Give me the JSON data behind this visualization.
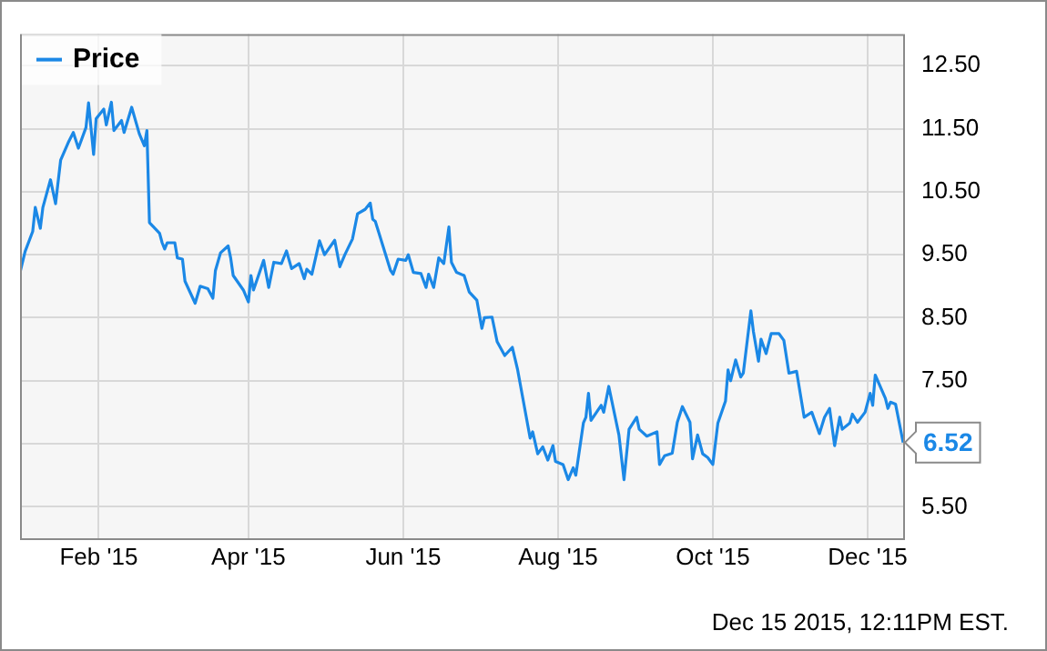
{
  "chart_data": {
    "type": "line",
    "x": [
      "2015-01-01",
      "2015-01-03",
      "2015-01-06",
      "2015-01-07",
      "2015-01-09",
      "2015-01-10",
      "2015-01-13",
      "2015-01-15",
      "2015-01-17",
      "2015-01-20",
      "2015-01-22",
      "2015-01-24",
      "2015-01-27",
      "2015-01-28",
      "2015-01-30",
      "2015-01-31",
      "2015-02-03",
      "2015-02-04",
      "2015-02-06",
      "2015-02-07",
      "2015-02-10",
      "2015-02-11",
      "2015-02-14",
      "2015-02-17",
      "2015-02-19",
      "2015-02-20",
      "2015-02-21",
      "2015-02-25",
      "2015-02-26",
      "2015-02-27",
      "2015-02-28",
      "2015-03-03",
      "2015-03-04",
      "2015-03-06",
      "2015-03-07",
      "2015-03-11",
      "2015-03-13",
      "2015-03-16",
      "2015-03-18",
      "2015-03-19",
      "2015-03-21",
      "2015-03-24",
      "2015-03-25",
      "2015-03-26",
      "2015-03-30",
      "2015-04-01",
      "2015-04-02",
      "2015-04-03",
      "2015-04-07",
      "2015-04-09",
      "2015-04-11",
      "2015-04-14",
      "2015-04-16",
      "2015-04-18",
      "2015-04-21",
      "2015-04-23",
      "2015-04-24",
      "2015-04-26",
      "2015-04-29",
      "2015-05-01",
      "2015-05-05",
      "2015-05-07",
      "2015-05-09",
      "2015-05-12",
      "2015-05-14",
      "2015-05-17",
      "2015-05-19",
      "2015-05-20",
      "2015-05-21",
      "2015-05-27",
      "2015-05-28",
      "2015-05-30",
      "2015-06-02",
      "2015-06-03",
      "2015-06-05",
      "2015-06-08",
      "2015-06-10",
      "2015-06-11",
      "2015-06-13",
      "2015-06-15",
      "2015-06-17",
      "2015-06-19",
      "2015-06-20",
      "2015-06-22",
      "2015-06-25",
      "2015-06-27",
      "2015-06-30",
      "2015-07-02",
      "2015-07-03",
      "2015-07-06",
      "2015-07-08",
      "2015-07-11",
      "2015-07-14",
      "2015-07-16",
      "2015-07-21",
      "2015-07-22",
      "2015-07-24",
      "2015-07-26",
      "2015-07-28",
      "2015-07-30",
      "2015-07-31",
      "2015-08-03",
      "2015-08-05",
      "2015-08-07",
      "2015-08-08",
      "2015-08-11",
      "2015-08-12",
      "2015-08-13",
      "2015-08-14",
      "2015-08-18",
      "2015-08-19",
      "2015-08-21",
      "2015-08-25",
      "2015-08-27",
      "2015-08-29",
      "2015-09-01",
      "2015-09-02",
      "2015-09-05",
      "2015-09-09",
      "2015-09-10",
      "2015-09-12",
      "2015-09-15",
      "2015-09-17",
      "2015-09-19",
      "2015-09-22",
      "2015-09-23",
      "2015-09-25",
      "2015-09-27",
      "2015-09-29",
      "2015-10-01",
      "2015-10-03",
      "2015-10-06",
      "2015-10-07",
      "2015-10-08",
      "2015-10-10",
      "2015-10-12",
      "2015-10-13",
      "2015-10-16",
      "2015-10-17",
      "2015-10-19",
      "2015-10-20",
      "2015-10-22",
      "2015-10-24",
      "2015-10-27",
      "2015-10-29",
      "2015-10-31",
      "2015-11-03",
      "2015-11-06",
      "2015-11-09",
      "2015-11-12",
      "2015-11-14",
      "2015-11-16",
      "2015-11-18",
      "2015-11-20",
      "2015-11-21",
      "2015-11-24",
      "2015-11-25",
      "2015-11-27",
      "2015-11-30",
      "2015-12-02",
      "2015-12-03",
      "2015-12-04",
      "2015-12-08",
      "2015-12-09",
      "2015-12-10",
      "2015-12-12",
      "2015-12-15"
    ],
    "series": [
      {
        "name": "Price",
        "color": "#1b88e6",
        "values": [
          9.22,
          9.55,
          9.87,
          10.25,
          9.92,
          10.25,
          10.69,
          10.31,
          11.0,
          11.28,
          11.44,
          11.19,
          11.52,
          11.91,
          11.09,
          11.66,
          11.81,
          11.56,
          11.92,
          11.47,
          11.63,
          11.44,
          11.84,
          11.42,
          11.23,
          11.47,
          10.01,
          9.84,
          9.69,
          9.59,
          9.69,
          9.69,
          9.45,
          9.43,
          9.08,
          8.73,
          9.0,
          8.96,
          8.81,
          9.25,
          9.53,
          9.64,
          9.45,
          9.17,
          8.94,
          8.75,
          9.17,
          8.94,
          9.41,
          8.98,
          9.38,
          9.36,
          9.56,
          9.28,
          9.36,
          9.12,
          9.27,
          9.19,
          9.72,
          9.5,
          9.73,
          9.31,
          9.5,
          9.75,
          10.15,
          10.22,
          10.32,
          10.06,
          10.03,
          9.25,
          9.19,
          9.43,
          9.41,
          9.5,
          9.22,
          9.2,
          8.98,
          9.19,
          8.98,
          9.45,
          9.36,
          9.94,
          9.38,
          9.22,
          9.17,
          8.91,
          8.78,
          8.33,
          8.5,
          8.51,
          8.12,
          7.9,
          8.03,
          7.69,
          6.59,
          6.69,
          6.34,
          6.45,
          6.24,
          6.47,
          6.22,
          6.17,
          5.93,
          6.12,
          6.0,
          6.83,
          6.92,
          7.3,
          6.87,
          7.11,
          7.0,
          7.41,
          6.64,
          5.93,
          6.73,
          6.92,
          6.73,
          6.62,
          6.69,
          6.17,
          6.31,
          6.35,
          6.84,
          7.09,
          6.84,
          6.26,
          6.64,
          6.34,
          6.28,
          6.17,
          6.83,
          7.18,
          7.67,
          7.5,
          7.83,
          7.56,
          7.62,
          8.61,
          8.28,
          7.81,
          8.16,
          7.93,
          8.25,
          8.25,
          8.14,
          7.62,
          7.65,
          6.92,
          7.0,
          6.66,
          6.92,
          7.06,
          6.47,
          6.92,
          6.73,
          6.83,
          6.97,
          6.84,
          7.0,
          7.3,
          7.11,
          7.59,
          7.22,
          7.06,
          7.16,
          7.13,
          6.52
        ]
      }
    ],
    "xlim": [
      "2015-01-01",
      "2015-12-15"
    ],
    "xticks": [
      {
        "value": "2015-02-01",
        "label": "Feb '15"
      },
      {
        "value": "2015-04-01",
        "label": "Apr '15"
      },
      {
        "value": "2015-06-01",
        "label": "Jun '15"
      },
      {
        "value": "2015-08-01",
        "label": "Aug '15"
      },
      {
        "value": "2015-10-01",
        "label": "Oct '15"
      },
      {
        "value": "2015-12-01",
        "label": "Dec '15"
      }
    ],
    "ylim": [
      5,
      13
    ],
    "yticks": [
      {
        "value": 5.5,
        "label": "5.50"
      },
      {
        "value": 6.5,
        "label": null
      },
      {
        "value": 7.5,
        "label": "7.50"
      },
      {
        "value": 8.5,
        "label": "8.50"
      },
      {
        "value": 9.5,
        "label": "9.50"
      },
      {
        "value": 10.5,
        "label": "10.50"
      },
      {
        "value": 11.5,
        "label": "11.50"
      },
      {
        "value": 12.5,
        "label": "12.50"
      }
    ],
    "grid": true,
    "legend": "top left",
    "annotations": [
      {
        "text": "6.52",
        "x": "2015-12-15",
        "y": 6.52
      },
      "Dec 15 2015, 12:11PM EST."
    ]
  }
}
